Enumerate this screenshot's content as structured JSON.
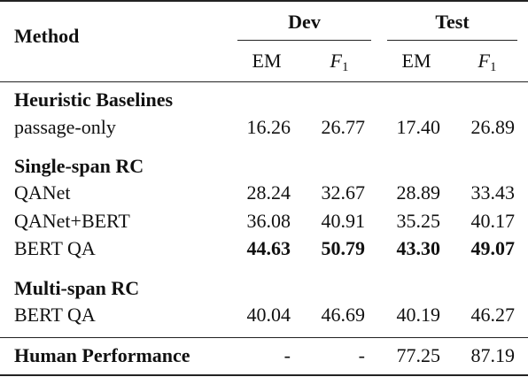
{
  "header": {
    "method": "Method",
    "dev": "Dev",
    "test": "Test",
    "em": "EM",
    "f_letter": "F",
    "f_sub": "1"
  },
  "groups": [
    {
      "title": "Heuristic Baselines",
      "rows": [
        {
          "method": "passage-only",
          "dev_em": "16.26",
          "dev_f1": "26.77",
          "test_em": "17.40",
          "test_f1": "26.89",
          "bold": false
        }
      ]
    },
    {
      "title": "Single-span RC",
      "rows": [
        {
          "method": "QANet",
          "dev_em": "28.24",
          "dev_f1": "32.67",
          "test_em": "28.89",
          "test_f1": "33.43",
          "bold": false
        },
        {
          "method": "QANet+BERT",
          "dev_em": "36.08",
          "dev_f1": "40.91",
          "test_em": "35.25",
          "test_f1": "40.17",
          "bold": false
        },
        {
          "method": "BERT QA",
          "dev_em": "44.63",
          "dev_f1": "50.79",
          "test_em": "43.30",
          "test_f1": "49.07",
          "bold": true
        }
      ]
    },
    {
      "title": "Multi-span RC",
      "rows": [
        {
          "method": "BERT QA",
          "dev_em": "40.04",
          "dev_f1": "46.69",
          "test_em": "40.19",
          "test_f1": "46.27",
          "bold": false
        }
      ]
    }
  ],
  "human": {
    "method": "Human Performance",
    "dev_em": "-",
    "dev_f1": "-",
    "test_em": "77.25",
    "test_f1": "87.19"
  }
}
